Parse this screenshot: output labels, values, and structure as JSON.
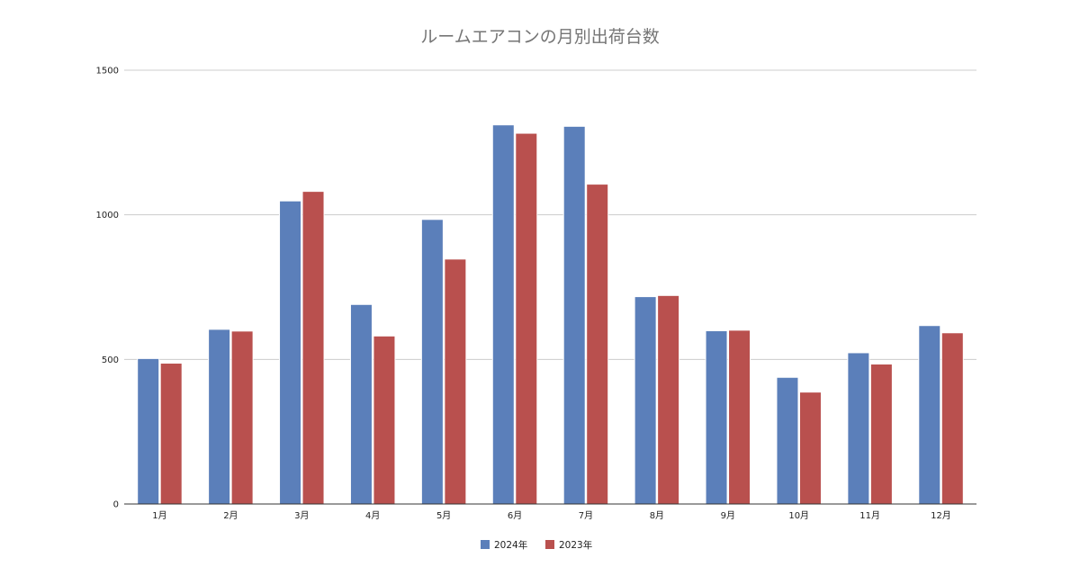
{
  "chart_data": {
    "type": "bar",
    "title": "ルームエアコンの月別出荷台数",
    "xlabel": "",
    "ylabel": "",
    "categories": [
      "1月",
      "2月",
      "3月",
      "4月",
      "5月",
      "6月",
      "7月",
      "8月",
      "9月",
      "10月",
      "11月",
      "12月"
    ],
    "series": [
      {
        "name": "2024年",
        "color": "#5b7fba",
        "values": [
          503,
          604,
          1048,
          690,
          984,
          1311,
          1306,
          717,
          599,
          438,
          523,
          617
        ]
      },
      {
        "name": "2023年",
        "color": "#b9504e",
        "values": [
          487,
          598,
          1081,
          581,
          847,
          1282,
          1106,
          721,
          601,
          387,
          484,
          592
        ]
      }
    ],
    "ylim": [
      0,
      1500
    ],
    "yticks": [
      0,
      500,
      1000,
      1500
    ],
    "grid": true,
    "legend_position": "bottom-center"
  }
}
